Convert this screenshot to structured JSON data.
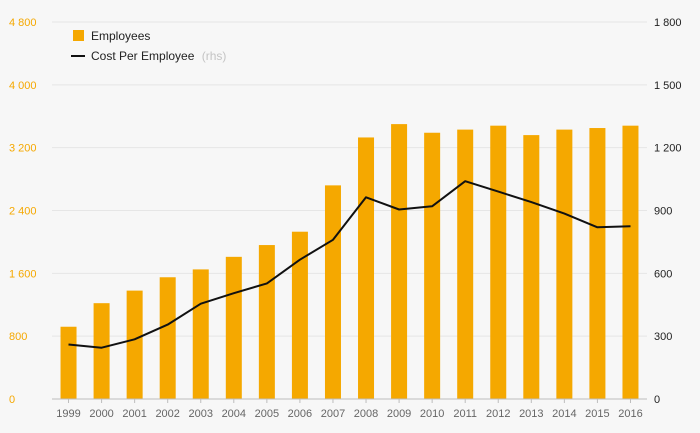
{
  "chart_data": {
    "type": "bar",
    "categories": [
      "1999",
      "2000",
      "2001",
      "2002",
      "2003",
      "2004",
      "2005",
      "2006",
      "2007",
      "2008",
      "2009",
      "2010",
      "2011",
      "2012",
      "2013",
      "2014",
      "2015",
      "2016"
    ],
    "series": [
      {
        "name": "Employees",
        "type": "bar",
        "axis": "left",
        "color": "#f5a800",
        "values": [
          920,
          1220,
          1380,
          1550,
          1650,
          1810,
          1960,
          2130,
          2720,
          3330,
          3500,
          3390,
          3430,
          3480,
          3360,
          3430,
          3450,
          3480
        ]
      },
      {
        "name": "Cost Per Employee",
        "name_suffix": "(rhs)",
        "type": "line",
        "axis": "right",
        "color": "#111111",
        "values": [
          260,
          245,
          285,
          355,
          455,
          505,
          552,
          665,
          760,
          963,
          905,
          920,
          1040,
          990,
          940,
          885,
          820,
          825
        ]
      }
    ],
    "left_axis": {
      "ylim": [
        0,
        4800
      ],
      "ticks": [
        0,
        800,
        1600,
        2400,
        3200,
        4000,
        4800
      ],
      "tick_labels": [
        "0",
        "800",
        "1 600",
        "2 400",
        "3 200",
        "4 000",
        "4 800"
      ],
      "color": "#f5a800"
    },
    "right_axis": {
      "ylim": [
        0,
        1800
      ],
      "ticks": [
        0,
        300,
        600,
        900,
        1200,
        1500,
        1800
      ],
      "tick_labels": [
        "0",
        "300",
        "600",
        "900",
        "1 200",
        "1 500",
        "1 800"
      ],
      "color": "#222222"
    },
    "grid": true,
    "legend": "top-left"
  }
}
